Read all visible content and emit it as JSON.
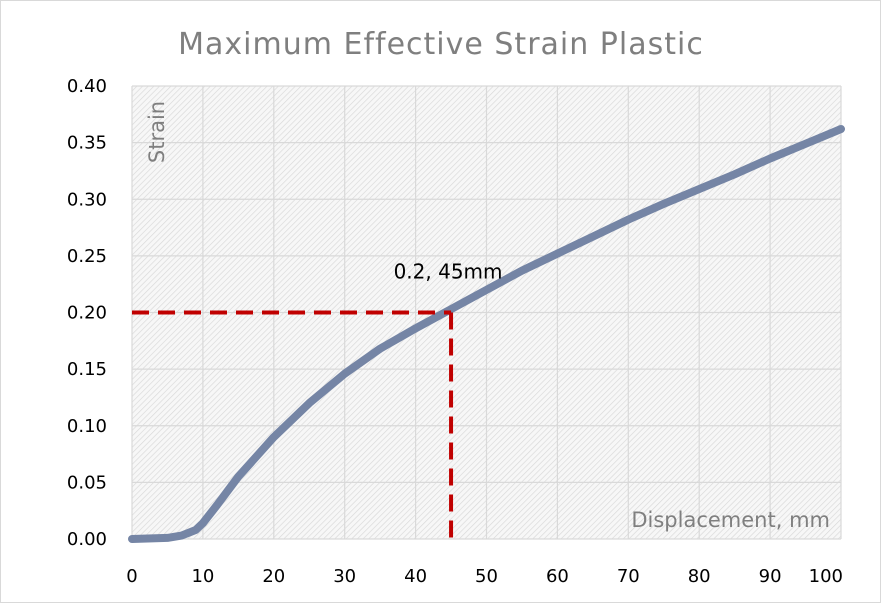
{
  "chart_data": {
    "type": "line",
    "title": "Maximum Effective Strain Plastic",
    "xlabel": "Displacement, mm",
    "ylabel": "Strain",
    "xlim": [
      0,
      100
    ],
    "ylim": [
      0,
      0.4
    ],
    "x_ticks": [
      "0",
      "10",
      "20",
      "30",
      "40",
      "50",
      "60",
      "70",
      "80",
      "90",
      "100"
    ],
    "y_ticks": [
      "0.00",
      "0.05",
      "0.10",
      "0.15",
      "0.20",
      "0.25",
      "0.30",
      "0.35",
      "0.40"
    ],
    "grid": true,
    "series": [
      {
        "color": "#7585a5",
        "x": [
          0,
          5,
          7,
          9,
          10,
          12,
          15,
          20,
          25,
          30,
          35,
          40,
          45,
          50,
          55,
          60,
          65,
          70,
          75,
          80,
          85,
          90,
          95,
          100
        ],
        "y": [
          0.0,
          0.001,
          0.003,
          0.008,
          0.014,
          0.03,
          0.055,
          0.09,
          0.12,
          0.146,
          0.168,
          0.186,
          0.203,
          0.22,
          0.237,
          0.252,
          0.267,
          0.282,
          0.296,
          0.309,
          0.322,
          0.336,
          0.349,
          0.362
        ]
      }
    ],
    "annotation": {
      "text": "0.2, 45mm",
      "x": 45,
      "y": 0.2,
      "color": "#c00000"
    }
  }
}
